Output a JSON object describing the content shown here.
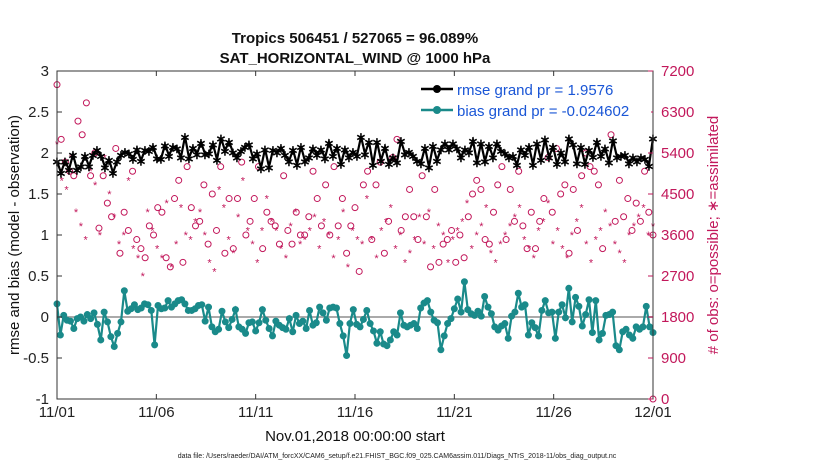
{
  "chart_data": {
    "type": "line",
    "title": "Tropics 506451 / 527065 = 96.089%",
    "subtitle": "SAT_HORIZONTAL_WIND @ 1000 hPa",
    "xlabel": "Nov.01,2018 00:00:00 start",
    "ylabel": "rmse and bias (model - observation)",
    "ylabel_right": "# of obs: o=possible; ∗=assimilated",
    "x_ticks": [
      "11/01",
      "11/06",
      "11/11",
      "11/16",
      "11/21",
      "11/26",
      "12/01"
    ],
    "x_range_days": [
      0,
      30
    ],
    "ylim": [
      -1,
      3
    ],
    "y_ticks": [
      "-1",
      "-0.5",
      "0",
      "0.5",
      "1",
      "1.5",
      "2",
      "2.5",
      "3"
    ],
    "ylim_right": [
      0,
      7200
    ],
    "y_ticks_right": [
      "0",
      "900",
      "1800",
      "2700",
      "3600",
      "4500",
      "5400",
      "6300",
      "7200"
    ],
    "samples_per_day": 4,
    "series": [
      {
        "name": "rmse grand pr = 1.9576",
        "axis": "left",
        "color": "#000000",
        "values": [
          1.9,
          1.76,
          1.9,
          1.8,
          1.98,
          1.8,
          1.84,
          1.97,
          1.84,
          1.98,
          2.04,
          1.97,
          1.83,
          1.92,
          1.76,
          1.9,
          1.98,
          2.02,
          2.0,
          1.93,
          2.05,
          1.91,
          2.04,
          2.03,
          2.08,
          1.94,
          1.93,
          2.1,
          1.97,
          2.08,
          2.06,
          1.95,
          2.2,
          1.94,
          2.07,
          1.99,
          2.13,
          1.99,
          2.0,
          2.11,
          1.92,
          2.18,
          2.03,
          2.14,
          2.01,
          1.95,
          2.03,
          2.08,
          2.11,
          1.94,
          2.0,
          1.82,
          2.05,
          1.83,
          2.04,
          2.01,
          2.07,
          1.98,
          1.9,
          2.04,
          1.86,
          2.08,
          1.9,
          1.95,
          2.06,
          1.98,
          2.05,
          1.94,
          2.13,
          1.97,
          2.07,
          1.87,
          2.05,
          1.95,
          2.02,
          1.97,
          2.2,
          1.99,
          2.14,
          1.86,
          2.14,
          1.91,
          2.07,
          1.87,
          1.95,
          1.89,
          2.15,
          1.99,
          2.02,
          1.97,
          1.91,
          1.88,
          2.07,
          1.83,
          2.09,
          1.91,
          2.05,
          2.12,
          2.05,
          2.12,
          2.06,
          1.95,
          2.05,
          2.01,
          2.15,
          1.89,
          2.12,
          1.9,
          2.09,
          1.95,
          2.12,
          2.03,
          2.0,
          1.95,
          1.97,
          1.86,
          2.05,
          1.98,
          2.08,
          1.86,
          2.12,
          1.92,
          2.17,
          1.95,
          2.08,
          1.87,
          2.01,
          1.9,
          2.18,
          2.11,
          1.88,
          2.08,
          1.87,
          2.04,
          1.96,
          2.14,
          1.97,
          2.06,
          1.89,
          2.16,
          1.95,
          1.97,
          1.98,
          1.88,
          1.95,
          1.9,
          1.95,
          1.93,
          1.85,
          2.18
        ]
      },
      {
        "name": "bias grand pr = -0.024602",
        "axis": "left",
        "color": "#1a8a8a",
        "values": [
          0.16,
          -0.22,
          0.02,
          -0.04,
          -0.05,
          -0.14,
          -0.02,
          0.0,
          -0.05,
          0.03,
          -0.02,
          0.05,
          -0.09,
          -0.28,
          0.06,
          -0.06,
          -0.24,
          -0.36,
          -0.2,
          -0.06,
          0.32,
          0.07,
          0.1,
          0.15,
          0.09,
          0.11,
          0.16,
          0.15,
          0.08,
          -0.34,
          0.14,
          0.1,
          0.11,
          0.2,
          0.12,
          0.16,
          0.2,
          0.21,
          0.16,
          0.08,
          0.08,
          0.1,
          0.14,
          0.15,
          -0.05,
          0.12,
          -0.12,
          -0.18,
          -0.15,
          0.07,
          -0.06,
          -0.13,
          -0.03,
          0.09,
          -0.12,
          -0.15,
          -0.2,
          -0.07,
          -0.06,
          -0.17,
          -0.07,
          0.09,
          -0.04,
          -0.14,
          -0.23,
          -0.05,
          -0.1,
          -0.13,
          -0.15,
          -0.02,
          -0.18,
          0.02,
          -0.08,
          -0.05,
          -0.14,
          0.08,
          -0.1,
          -0.07,
          0.12,
          0.05,
          -0.04,
          0.11,
          0.12,
          0.11,
          -0.08,
          -0.23,
          -0.47,
          -0.08,
          0.09,
          -0.09,
          -0.12,
          -0.03,
          0.08,
          -0.08,
          -0.17,
          -0.32,
          -0.18,
          -0.33,
          -0.35,
          -0.28,
          -0.18,
          -0.22,
          0.05,
          -0.1,
          -0.12,
          -0.1,
          -0.08,
          -0.14,
          0.11,
          0.17,
          0.2,
          0.06,
          -0.04,
          -0.07,
          -0.4,
          -0.23,
          -0.08,
          -0.02,
          0.1,
          0.22,
          0.06,
          0.43,
          0.09,
          0.04,
          0.02,
          0.07,
          0.01,
          0.25,
          0.12,
          0.04,
          -0.12,
          -0.16,
          -0.11,
          -0.08,
          -0.26,
          0.01,
          0.06,
          0.29,
          0.12,
          0.15,
          -0.22,
          -0.07,
          -0.13,
          -0.23,
          0.08,
          0.2,
          0.05,
          0.06,
          -0.26,
          0.06,
          0.15,
          -0.01,
          0.35,
          -0.06,
          0.24,
          0.13,
          -0.11,
          0.03,
          0.21,
          -0.19,
          0.2,
          -0.28,
          -0.2,
          0.02,
          0.03,
          0.06,
          -0.35,
          -0.4,
          -0.18,
          -0.15,
          -0.22,
          -0.26,
          -0.12,
          -0.15,
          -0.12,
          0.13,
          -0.12,
          -0.19
        ]
      },
      {
        "name": "possible",
        "axis": "right",
        "marker": "o",
        "color": "#c2185b",
        "values": [
          6900,
          5700,
          5200,
          5000,
          4900,
          6100,
          5800,
          6500,
          4900,
          5400,
          3750,
          4900,
          4300,
          4000,
          5500,
          3200,
          4100,
          3700,
          5000,
          3500,
          3300,
          3100,
          3800,
          3600,
          4200,
          4100,
          3100,
          2900,
          4400,
          4800,
          3000,
          5100,
          4200,
          3800,
          3900,
          4700,
          3400,
          4500,
          3700,
          5100,
          3200,
          4400,
          3300,
          4400,
          5200,
          3600,
          3900,
          4400,
          5100,
          3300,
          4100,
          3900,
          3800,
          3400,
          4900,
          3700,
          3400,
          4100,
          3600,
          3600,
          4000,
          5000,
          4400,
          3800,
          4700,
          3600,
          5100,
          3800,
          4400,
          3200,
          3800,
          4200,
          2800,
          4700,
          5000,
          3500,
          4700,
          5200,
          3200,
          3900,
          5300,
          5700,
          3700,
          4000,
          4600,
          4000,
          3500,
          4900,
          4000,
          2900,
          4600,
          3000,
          3400,
          3500,
          3700,
          3000,
          3600,
          3100,
          4000,
          4500,
          4800,
          4600,
          3500,
          3400,
          4100,
          4700,
          5100,
          3500,
          4600,
          3900,
          5000,
          3800,
          3300,
          4100,
          3300,
          3900,
          4400,
          5300,
          4100,
          5500,
          4500,
          4700,
          3200,
          4600,
          3700,
          4900,
          5400,
          5100,
          5000,
          4700,
          3300,
          6400,
          5800,
          3900,
          4800,
          4000,
          4400,
          3700,
          4300,
          3900,
          5000,
          4100,
          3600
        ]
      },
      {
        "name": "assimilated",
        "axis": "right",
        "marker": "*",
        "color": "#c2185b",
        "values": [
          5600,
          4800,
          4600,
          5300,
          4100,
          3800,
          3500,
          5000,
          4700,
          3600,
          5300,
          4500,
          4000,
          3400,
          3600,
          4800,
          3300,
          3100,
          2700,
          4100,
          3700,
          3300,
          3100,
          4300,
          2900,
          3400,
          4200,
          3600,
          3500,
          3900,
          4100,
          3600,
          3000,
          2800,
          4600,
          4200,
          3500,
          3200,
          4000,
          4800,
          3700,
          3400,
          3000,
          3700,
          4400,
          3900,
          3700,
          3300,
          3100,
          3800,
          4100,
          3400,
          3500,
          3700,
          4000,
          3300,
          3900,
          3600,
          3100,
          3500,
          4100,
          2900,
          3700,
          3500,
          3400,
          4400,
          3500,
          3100,
          3700,
          3900,
          4200,
          3300,
          3600,
          3000,
          3200,
          3500,
          4000,
          3400,
          4100,
          3300,
          3800,
          3600,
          3000,
          3500,
          3700,
          3900,
          4300,
          3300,
          3600,
          3800,
          4200,
          3200,
          3000,
          3400,
          3600,
          3800,
          4000,
          4200,
          3500,
          3300,
          3100,
          3700,
          3900,
          4300,
          3400,
          3700,
          3300,
          3100,
          3600,
          3900,
          4200,
          3400,
          3000,
          3500,
          3700,
          4100,
          3800,
          3400,
          3200,
          3000,
          3600,
          3800,
          4000,
          4200,
          3600,
          3800
        ]
      }
    ],
    "legend": [
      {
        "label": "rmse grand pr = 1.9576",
        "color": "#000000"
      },
      {
        "label": "bias grand pr = -0.024602",
        "color": "#1a8a8a"
      }
    ],
    "legend_position": "top-right",
    "footer": "data file: /Users/raeder/DAI/ATM_forcXX/CAM6_setup/f.e21.FHIST_BGC.f09_025.CAM6assim.011/Diags_NTrS_2018-11/obs_diag_output.nc"
  }
}
